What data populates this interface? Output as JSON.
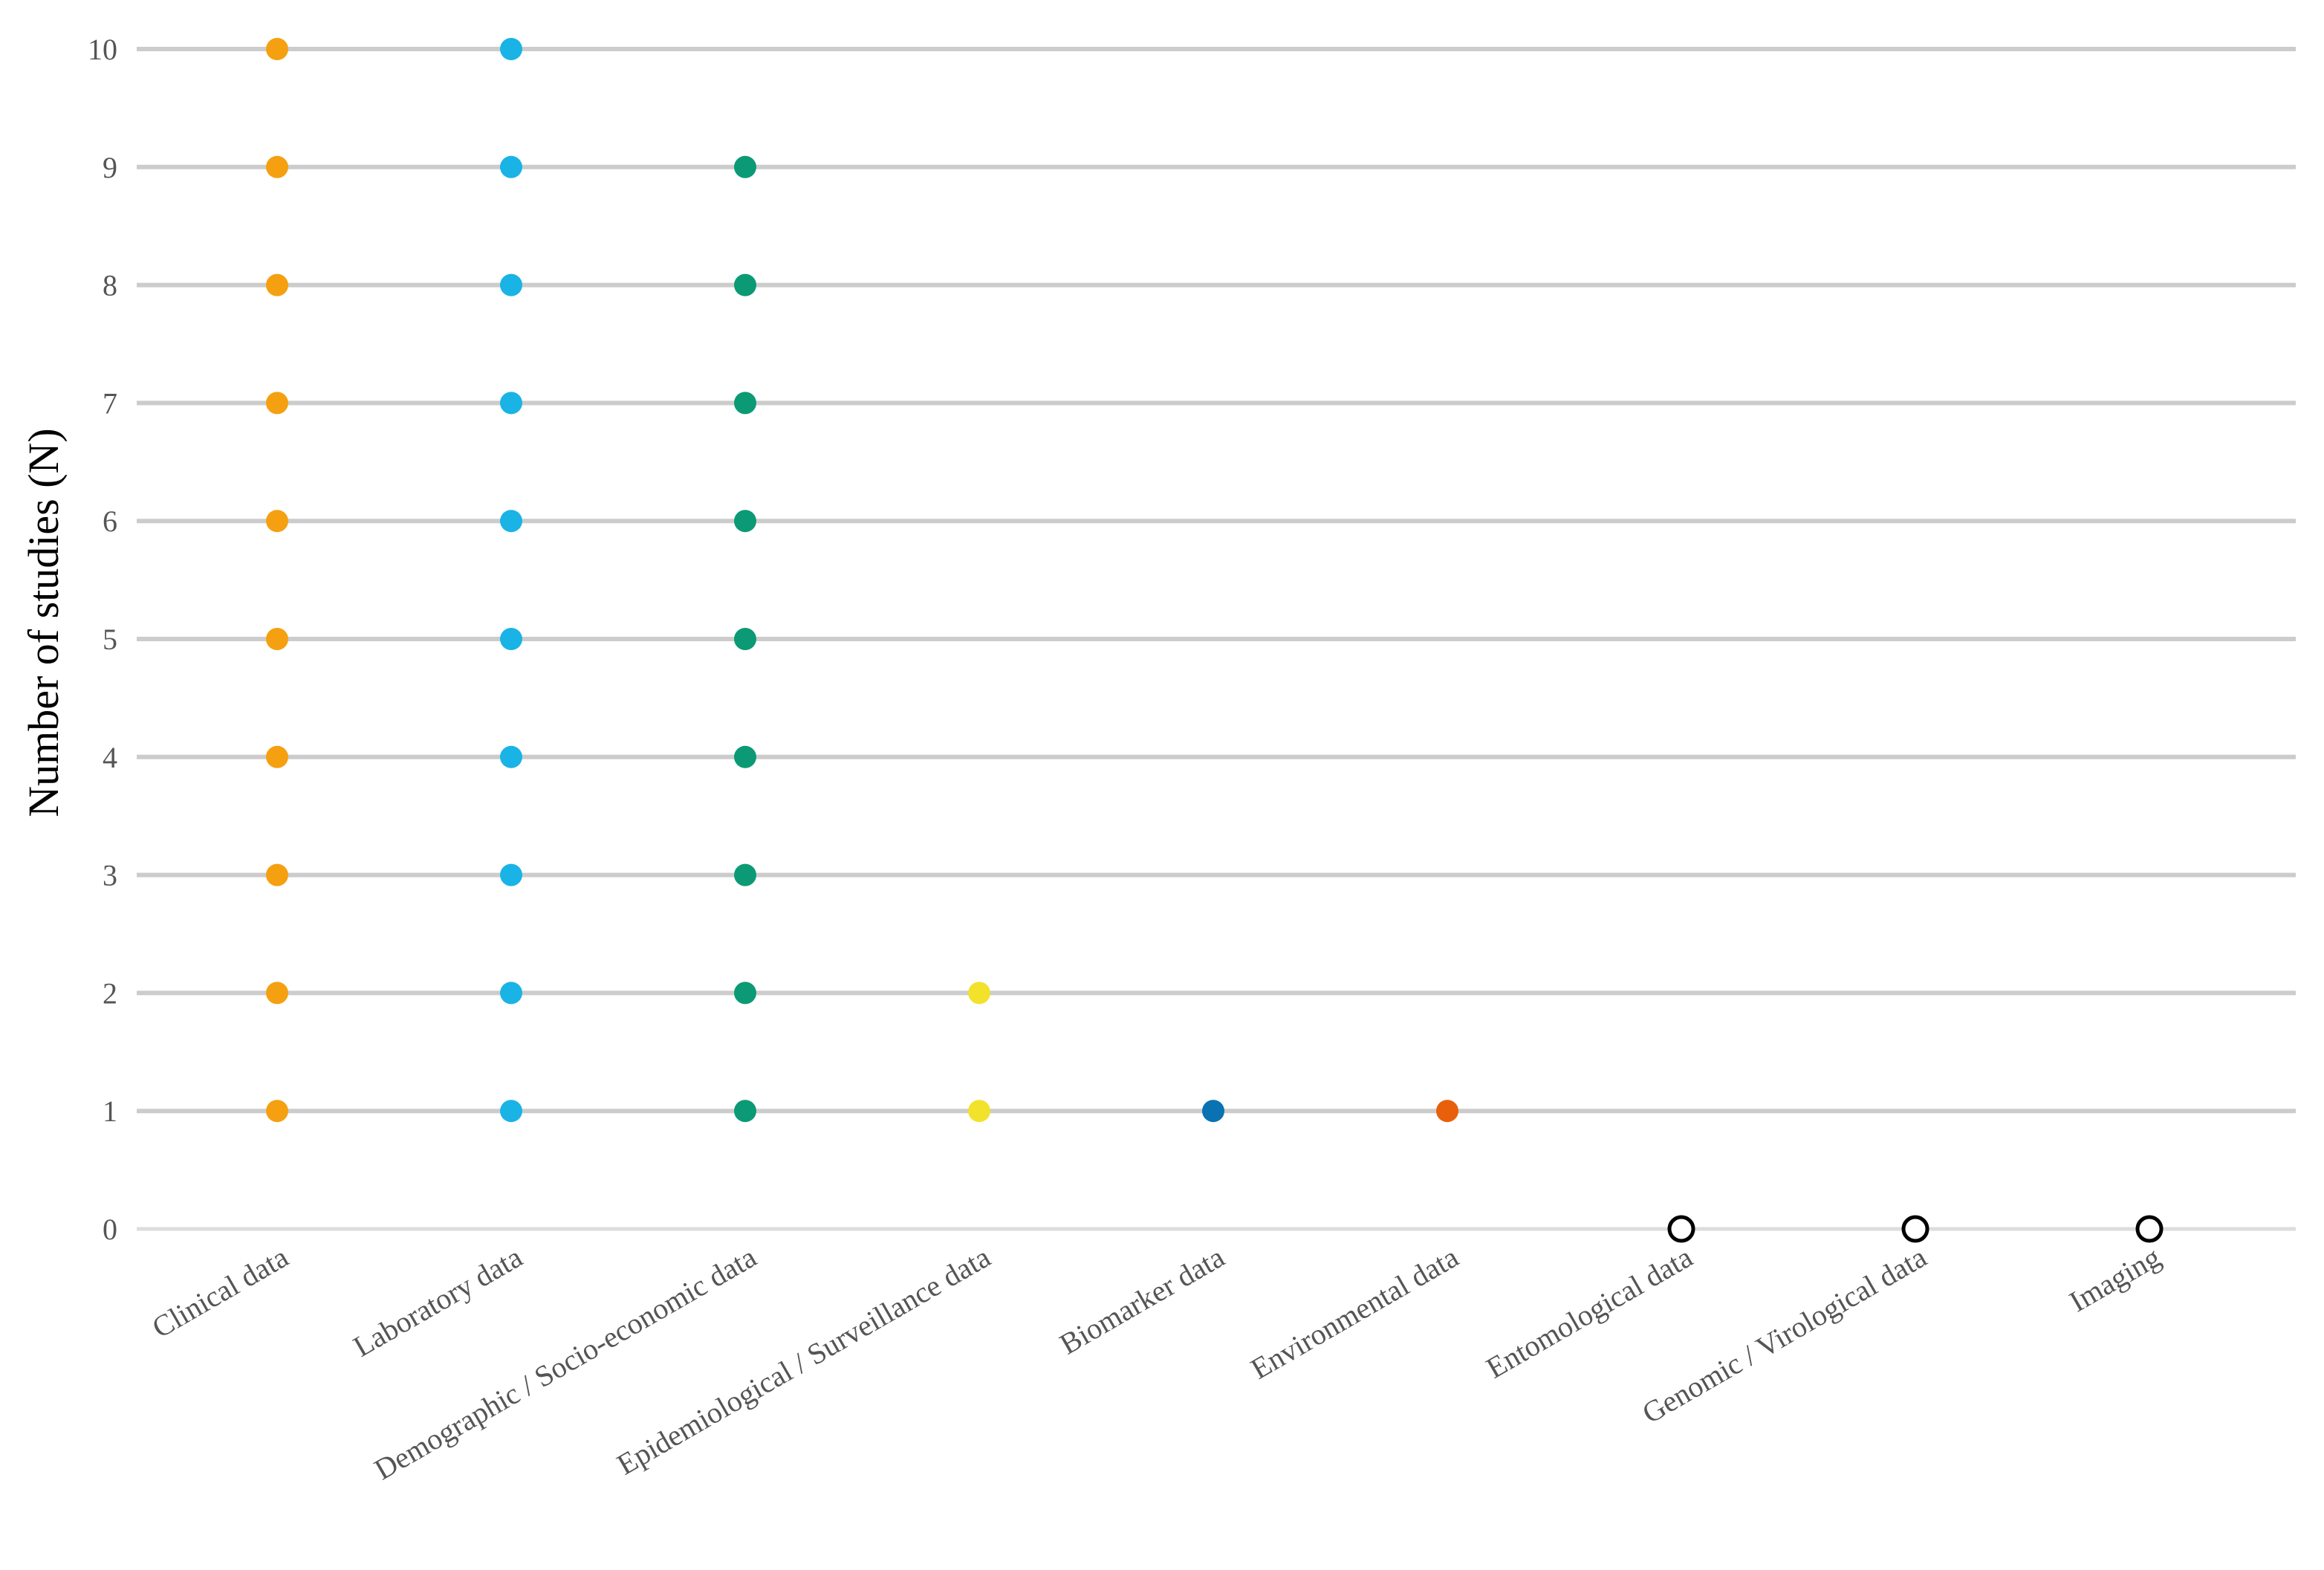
{
  "chart_data": {
    "type": "scatter",
    "title": "",
    "xlabel": "",
    "ylabel": "Number of studies (N)",
    "ylim": [
      0,
      10
    ],
    "yticks": [
      "0",
      "1",
      "2",
      "3",
      "4",
      "5",
      "6",
      "7",
      "8",
      "9",
      "10"
    ],
    "grid": true,
    "categories": [
      "Clinical data",
      "Laboratory data",
      "Demographic / Socio-economic data",
      "Epidemiological / Surveillance data",
      "Biomarker data",
      "Environmental data",
      "Entomological data",
      "Genomic / Virological data",
      "Imaging"
    ],
    "values": [
      10,
      10,
      9,
      2,
      1,
      1,
      0,
      0,
      0
    ],
    "colors": [
      "#F5A011",
      "#1AB3E6",
      "#0B9A75",
      "#F2E22C",
      "#0972B2",
      "#E85F0C",
      "#000000",
      "#000000",
      "#000000"
    ],
    "zero_marker": "open-circle"
  }
}
